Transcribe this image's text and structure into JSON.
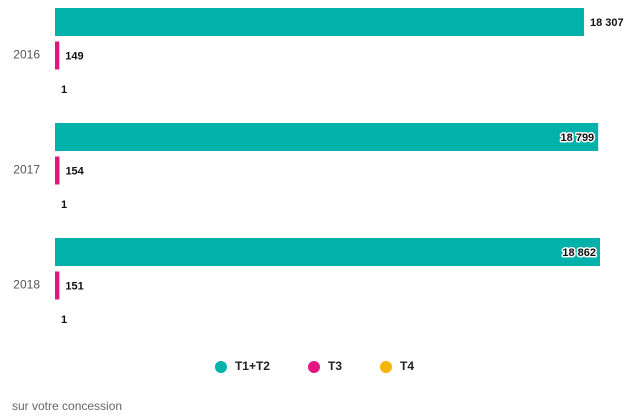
{
  "chart_data": {
    "type": "hbar",
    "categories": [
      "2016",
      "2017",
      "2018"
    ],
    "series": [
      {
        "name": "T1+T2",
        "color": "#00b2a9",
        "values": [
          18307,
          18799,
          18862
        ],
        "value_labels": [
          "18 307",
          "18 799",
          "18 862"
        ]
      },
      {
        "name": "T3",
        "color": "#e3157f",
        "values": [
          149,
          154,
          151
        ]
      },
      {
        "name": "T4",
        "color": "#f7b500",
        "values": [
          1,
          1,
          1
        ]
      }
    ],
    "xlim": [
      0,
      19000
    ],
    "legend": "bottom",
    "caption": "sur votre concession"
  }
}
